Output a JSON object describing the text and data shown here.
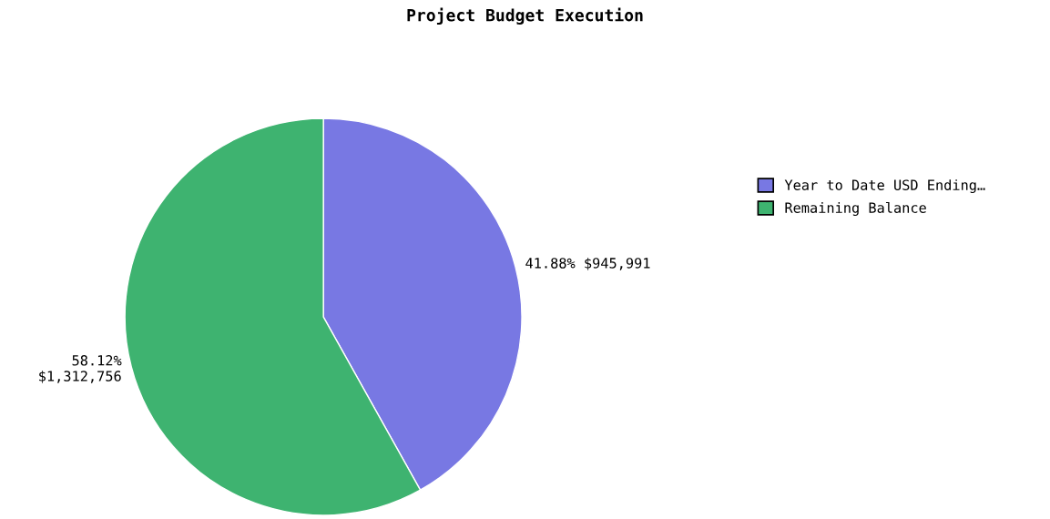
{
  "chart_data": {
    "type": "pie",
    "title": "Project Budget Execution",
    "categories": [
      "Year to Date USD Ending…",
      "Remaining Balance"
    ],
    "values": [
      945991,
      1312756
    ],
    "colors": [
      "#7878e3",
      "#3eb370"
    ],
    "value_labels": [
      "41.88% $945,991",
      "58.12%\n$1,312,756"
    ],
    "legend": "right"
  }
}
